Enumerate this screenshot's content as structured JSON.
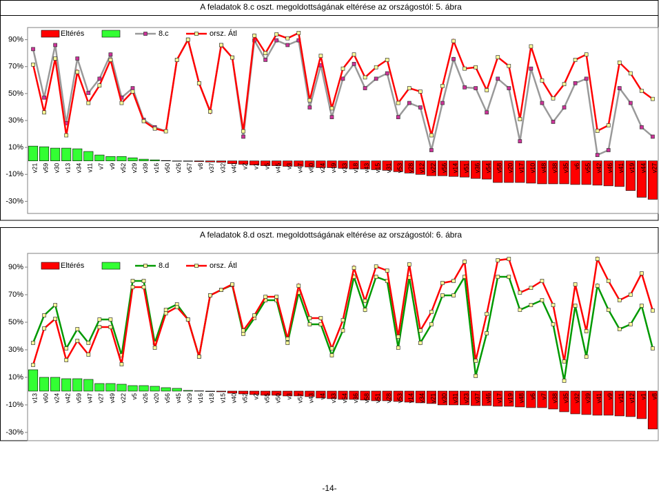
{
  "chart_data": [
    {
      "type": "combo",
      "title": "A feladatok 8.c oszt. megoldottságának eltérése az országostól: 5. ábra",
      "categories": [
        "v21",
        "v59",
        "v30",
        "v13",
        "v34",
        "v11",
        "v7",
        "v9",
        "v52",
        "v29",
        "v39",
        "v16",
        "v50",
        "v26",
        "v57",
        "v8",
        "v37",
        "v32",
        "v40",
        "v2",
        "v1",
        "v5",
        "v45",
        "v3",
        "v47",
        "v60",
        "v24",
        "v49",
        "v33",
        "v18",
        "v43",
        "v15",
        "v31",
        "v53",
        "v28",
        "v12",
        "v22",
        "v56",
        "v14",
        "v51",
        "v36",
        "v54",
        "v58",
        "v20",
        "v17",
        "v10",
        "v48",
        "v38",
        "v35",
        "v6",
        "v55",
        "v42",
        "v46",
        "v41",
        "v19",
        "v44",
        "v27"
      ],
      "series": [
        {
          "name": "Eltérés",
          "type": "bar",
          "color": "#ff0000",
          "positive_color": "#33ff33",
          "values": [
            11,
            10.5,
            9.5,
            9.5,
            9,
            7,
            4.4,
            3.3,
            3.3,
            2.3,
            1.3,
            0.8,
            0.3,
            0,
            -0.3,
            -0.5,
            -0.8,
            -1,
            -2,
            -2.5,
            -3,
            -3.5,
            -3.5,
            -4,
            -4,
            -4.5,
            -5,
            -5,
            -5.5,
            -6,
            -6,
            -6.5,
            -7,
            -8,
            -9,
            -10,
            -11,
            -11,
            -11.5,
            -12,
            -13,
            -13.5,
            -16,
            -16,
            -16,
            -16.5,
            -17,
            -17,
            -17,
            -17.5,
            -17.5,
            -18,
            -18.5,
            -19,
            -22,
            -27,
            -28.5
          ]
        },
        {
          "name": "8.c",
          "type": "line",
          "color": "#999999",
          "marker_color": "#cc3399",
          "values": [
            83,
            47,
            86,
            28,
            76,
            50.5,
            61,
            79,
            47,
            54,
            30.5,
            25,
            22,
            75,
            90,
            57.7,
            36.7,
            86,
            76.7,
            18,
            89.5,
            75,
            89.5,
            86,
            89.5,
            39.7,
            71,
            32.5,
            61,
            72,
            54,
            61,
            65,
            32.5,
            43,
            39.7,
            8,
            43,
            75.6,
            54.6,
            54,
            36,
            61,
            54,
            14.6,
            68.5,
            43,
            29,
            39.7,
            57.7,
            61,
            4.4,
            8,
            54,
            43,
            25,
            18
          ]
        },
        {
          "name": "orsz. Átl",
          "type": "line",
          "color": "#ff0000",
          "marker_color": "#ffff99",
          "values": [
            71.5,
            36,
            76,
            19,
            66,
            43,
            56,
            75,
            43,
            51.5,
            29.5,
            24,
            22,
            75,
            90,
            57.7,
            36.7,
            86,
            76.7,
            22,
            93,
            80,
            94,
            91,
            95,
            45,
            78,
            39,
            68.5,
            79,
            62,
            69.5,
            75,
            43,
            54,
            51.5,
            19,
            55.6,
            89,
            68.5,
            69.5,
            52.5,
            77,
            70.5,
            31,
            85,
            59.7,
            46.4,
            57,
            75,
            79,
            22.3,
            26.4,
            73,
            65,
            52,
            46
          ]
        }
      ],
      "ylim": [
        -39,
        99
      ],
      "yticks": [
        {
          "value": -30,
          "label": "-30%"
        },
        {
          "value": -10,
          "label": "-10%"
        },
        {
          "value": 10,
          "label": "10%"
        },
        {
          "value": 30,
          "label": "30%"
        },
        {
          "value": 50,
          "label": "50%"
        },
        {
          "value": 70,
          "label": "70%"
        },
        {
          "value": 90,
          "label": "90%"
        }
      ],
      "grid": false,
      "legend": "top-left"
    },
    {
      "type": "combo",
      "title": "A feladatok 8.d oszt. megoldottságának eltérése az országostól: 6. ábra",
      "categories": [
        "v13",
        "v60",
        "v24",
        "v42",
        "v59",
        "v47",
        "v27",
        "v49",
        "v22",
        "v5",
        "v26",
        "v20",
        "v56",
        "v45",
        "v29",
        "v16",
        "v18",
        "v15",
        "v40",
        "v52",
        "v2",
        "v55",
        "v50",
        "v3",
        "v57",
        "v43",
        "v4",
        "v33",
        "v54",
        "v36",
        "v58",
        "v51",
        "v28",
        "v53",
        "v14",
        "v34",
        "v21",
        "v30",
        "v31",
        "v23",
        "v37",
        "v46",
        "v17",
        "v19",
        "v48",
        "v6",
        "v7",
        "v38",
        "v35",
        "v32",
        "v39",
        "v41",
        "v9",
        "v11",
        "v12",
        "v1",
        "v8"
      ],
      "series": [
        {
          "name": "Eltérés",
          "type": "bar",
          "color": "#ff0000",
          "positive_color": "#33ff33",
          "values": [
            15.5,
            10,
            10,
            9,
            9,
            8.5,
            5.5,
            5.5,
            5,
            4,
            4,
            3.5,
            2.5,
            2,
            0.5,
            0.2,
            -0.3,
            -0.5,
            -1.5,
            -2,
            -2.5,
            -3,
            -3,
            -3.5,
            -3.5,
            -4,
            -5,
            -5.5,
            -6,
            -6,
            -6.5,
            -7,
            -7,
            -7.5,
            -8,
            -8.5,
            -9,
            -10,
            -10,
            -10,
            -10.5,
            -10.5,
            -11,
            -11,
            -11.5,
            -12,
            -12,
            -13,
            -15,
            -16.5,
            -17,
            -17.5,
            -17.5,
            -18,
            -18.5,
            -20,
            -27.5
          ]
        },
        {
          "name": "8.d",
          "type": "line",
          "color": "#009900",
          "marker_color": "#ffff99",
          "values": [
            35,
            55,
            62.5,
            31,
            45,
            35,
            52,
            52,
            26,
            80,
            80,
            35,
            59,
            63,
            52,
            25,
            69.5,
            73.5,
            77,
            41.5,
            53,
            66,
            66,
            35,
            71.5,
            48.5,
            48.5,
            26,
            44,
            83,
            59,
            83,
            80,
            31.5,
            82.5,
            35,
            48.5,
            69.5,
            69.5,
            83,
            11,
            42,
            83,
            83,
            59,
            62.5,
            66,
            48.5,
            7.5,
            62,
            25,
            76.5,
            59,
            45,
            48.5,
            62,
            31
          ]
        },
        {
          "name": "orsz. Átl",
          "type": "line",
          "color": "#ff0000",
          "marker_color": "#ffff99",
          "values": [
            19,
            45.5,
            52.5,
            22.5,
            36.5,
            26.5,
            46.5,
            46.5,
            19.5,
            75.5,
            75.5,
            31.5,
            56.5,
            61,
            52,
            25,
            69.5,
            73.5,
            77.5,
            44,
            55,
            68.5,
            68.5,
            38,
            76.5,
            53,
            53,
            31,
            51.5,
            89.5,
            65.5,
            90.5,
            87.5,
            39.5,
            92,
            44,
            57.5,
            78.5,
            80,
            94,
            22,
            56,
            95,
            96,
            71.5,
            75,
            80,
            62.5,
            21.5,
            77.5,
            43.5,
            96,
            80,
            66,
            70,
            85.5,
            58.5
          ]
        }
      ],
      "ylim": [
        -36,
        100
      ],
      "yticks": [
        {
          "value": -30,
          "label": "-30%"
        },
        {
          "value": -10,
          "label": "-10%"
        },
        {
          "value": 10,
          "label": "10%"
        },
        {
          "value": 30,
          "label": "30%"
        },
        {
          "value": 50,
          "label": "50%"
        },
        {
          "value": 70,
          "label": "70%"
        },
        {
          "value": 90,
          "label": "90%"
        }
      ],
      "grid": false,
      "legend": "top-left"
    }
  ],
  "footer": "-14-"
}
